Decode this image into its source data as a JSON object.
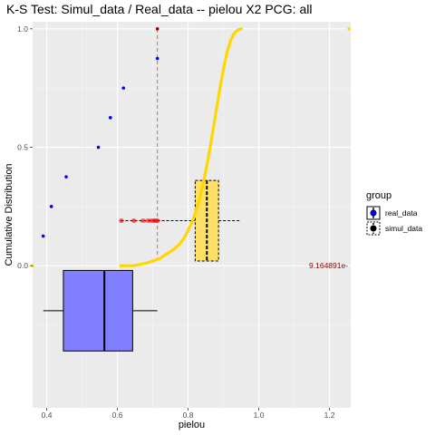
{
  "chart_data": {
    "type": "scatter",
    "title": "K-S Test: Simul_data / Real_data -- pielou X2 PCG: all",
    "xlabel": "pielou",
    "ylabel": "Cumulative Distribution",
    "xlim": [
      0.36,
      1.26
    ],
    "ylim": [
      -0.6,
      1.03
    ],
    "x_ticks": [
      0.4,
      0.6,
      0.8,
      1.0,
      1.2
    ],
    "x_tick_labels": [
      "0.4",
      "0.6",
      "0.8",
      "1.0",
      "1.2"
    ],
    "y_ticks": [
      0.0,
      0.5,
      1.0
    ],
    "y_tick_labels": [
      "0.0",
      "0.5",
      "1.0"
    ],
    "grid": true,
    "legend": {
      "title": "group",
      "position": "right",
      "entries": [
        "real_data",
        "simul_data"
      ]
    },
    "colors": {
      "real": "#0000ff",
      "simul": "#ffd700",
      "ks_line": "#e06040",
      "ks_points": "#ff0000",
      "box_real": "#7f7fff",
      "box_simul": "#ffe066",
      "annotation": "#8b0000",
      "panel": "#ebebeb"
    },
    "series": [
      {
        "name": "real_data",
        "x": [
          0.39,
          0.413,
          0.455,
          0.546,
          0.58,
          0.617,
          0.713
        ],
        "y": [
          0.125,
          0.25,
          0.375,
          0.5,
          0.625,
          0.75,
          0.875
        ]
      },
      {
        "name": "simul_data",
        "x": [
          0.36,
          0.61,
          0.645,
          0.68,
          0.7,
          0.72,
          0.74,
          0.76,
          0.775,
          0.79,
          0.8,
          0.81,
          0.82,
          0.83,
          0.84,
          0.85,
          0.86,
          0.87,
          0.88,
          0.89,
          0.9,
          0.91,
          0.92,
          0.93,
          0.94,
          0.95,
          1.255
        ],
        "y": [
          0.0,
          0.0,
          0.0,
          0.01,
          0.02,
          0.03,
          0.05,
          0.07,
          0.09,
          0.12,
          0.15,
          0.18,
          0.22,
          0.27,
          0.33,
          0.4,
          0.48,
          0.57,
          0.66,
          0.75,
          0.83,
          0.9,
          0.95,
          0.98,
          0.995,
          1.0,
          1.0
        ]
      }
    ],
    "ks_statistic_line": {
      "x": 0.713,
      "y_from": 0.02,
      "y_to": 1.0
    },
    "ks_points": {
      "x": [
        0.61,
        0.612,
        0.645,
        0.648,
        0.67,
        0.675,
        0.685,
        0.69,
        0.695,
        0.7,
        0.703,
        0.706,
        0.709,
        0.712,
        0.715
      ],
      "y": 0.19
    },
    "boxplots": [
      {
        "group": "real_data",
        "y_center": -0.19,
        "y_half_height": 0.17,
        "whisker_low": 0.39,
        "q1": 0.447,
        "median": 0.563,
        "q3": 0.643,
        "whisker_high": 0.713
      },
      {
        "group": "simul_data",
        "y_center": 0.19,
        "y_half_height": 0.17,
        "whisker_low": 0.61,
        "q1": 0.82,
        "median": 0.853,
        "q3": 0.886,
        "whisker_high": 0.95
      }
    ],
    "annotations": [
      {
        "text": "9.164891e-",
        "x": 1.255,
        "y": 0.0
      }
    ]
  }
}
